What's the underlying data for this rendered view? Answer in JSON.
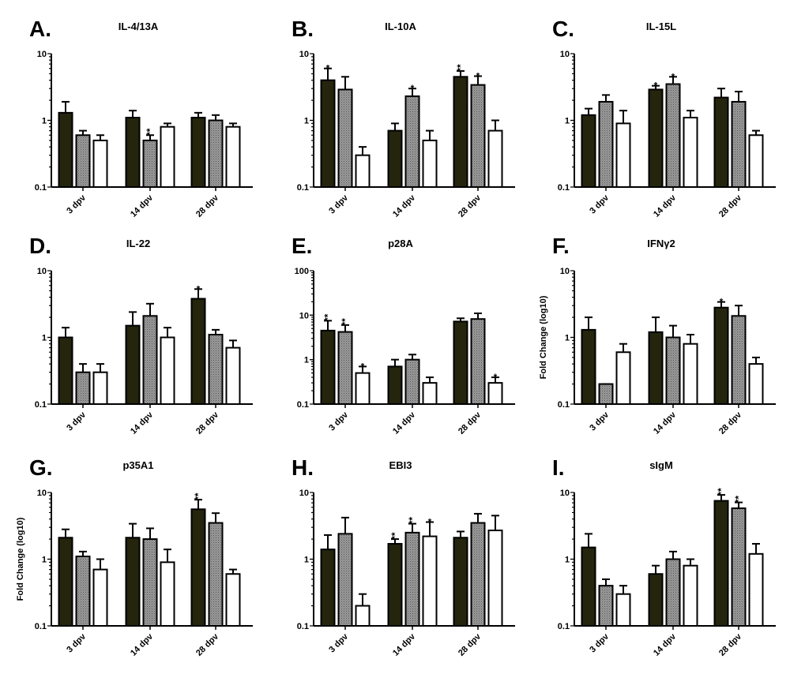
{
  "chart_data": [
    {
      "type": "bar",
      "letter": "A.",
      "title": "IL-4/13A",
      "ylabel": "",
      "yscale": "log",
      "ylim": [
        0.1,
        10
      ],
      "yticks": [
        "0.1",
        "1",
        "10"
      ],
      "categories": [
        "3 dpv",
        "14 dpv",
        "28 dpv"
      ],
      "values": [
        [
          1.3,
          0.6,
          0.5
        ],
        [
          1.1,
          0.5,
          0.8
        ],
        [
          1.1,
          1.0,
          0.8
        ]
      ],
      "errors": [
        [
          1.9,
          0.7,
          0.6
        ],
        [
          1.4,
          0.6,
          0.9
        ],
        [
          1.3,
          1.2,
          0.9
        ]
      ],
      "significance": [
        [
          "",
          "",
          ""
        ],
        [
          "",
          "**",
          ""
        ],
        [
          "",
          "",
          ""
        ]
      ]
    },
    {
      "type": "bar",
      "letter": "B.",
      "title": "IL-10A",
      "ylabel": "",
      "yscale": "log",
      "ylim": [
        0.1,
        10
      ],
      "yticks": [
        "0.1",
        "1",
        "10"
      ],
      "categories": [
        "3 dpv",
        "14 dpv",
        "28 dpv"
      ],
      "values": [
        [
          4.0,
          2.9,
          0.3
        ],
        [
          0.7,
          2.3,
          0.5
        ],
        [
          4.5,
          3.4,
          0.7
        ]
      ],
      "errors": [
        [
          6.0,
          4.5,
          0.4
        ],
        [
          0.9,
          3.0,
          0.7
        ],
        [
          5.5,
          4.6,
          1.0
        ]
      ],
      "significance": [
        [
          "*",
          "",
          ""
        ],
        [
          "",
          "*",
          ""
        ],
        [
          "**",
          "*",
          ""
        ]
      ]
    },
    {
      "type": "bar",
      "letter": "C.",
      "title": "IL-15L",
      "ylabel": "",
      "yscale": "log",
      "ylim": [
        0.1,
        10
      ],
      "yticks": [
        "0.1",
        "1",
        "10"
      ],
      "categories": [
        "3 dpv",
        "14 dpv",
        "28 dpv"
      ],
      "values": [
        [
          1.2,
          1.9,
          0.9
        ],
        [
          2.9,
          3.5,
          1.1
        ],
        [
          2.2,
          1.9,
          0.6
        ]
      ],
      "errors": [
        [
          1.5,
          2.4,
          1.4
        ],
        [
          3.3,
          4.5,
          1.4
        ],
        [
          3.0,
          2.7,
          0.7
        ]
      ],
      "significance": [
        [
          "",
          "",
          ""
        ],
        [
          "*",
          "*",
          ""
        ],
        [
          "",
          "",
          ""
        ]
      ]
    },
    {
      "type": "bar",
      "letter": "D.",
      "title": "IL-22",
      "ylabel": "",
      "yscale": "log",
      "ylim": [
        0.1,
        10
      ],
      "yticks": [
        "0.1",
        "1",
        "10"
      ],
      "categories": [
        "3 dpv",
        "14 dpv",
        "28 dpv"
      ],
      "values": [
        [
          1.0,
          0.3,
          0.3
        ],
        [
          1.5,
          2.1,
          1.0
        ],
        [
          3.8,
          1.1,
          0.7
        ]
      ],
      "errors": [
        [
          1.4,
          0.4,
          0.4
        ],
        [
          2.4,
          3.2,
          1.4
        ],
        [
          5.3,
          1.3,
          0.9
        ]
      ],
      "significance": [
        [
          "",
          "",
          ""
        ],
        [
          "",
          "",
          ""
        ],
        [
          "*",
          "",
          ""
        ]
      ]
    },
    {
      "type": "bar",
      "letter": "E.",
      "title": "p28A",
      "ylabel": "",
      "yscale": "log",
      "ylim": [
        0.1,
        100
      ],
      "yticks": [
        "0.1",
        "1",
        "10",
        "100"
      ],
      "categories": [
        "3 dpv",
        "14 dpv",
        "28 dpv"
      ],
      "values": [
        [
          4.5,
          4.2,
          0.5
        ],
        [
          0.7,
          1.0,
          0.3
        ],
        [
          7.2,
          8.2,
          0.3
        ]
      ],
      "errors": [
        [
          7.5,
          6.0,
          0.7
        ],
        [
          1.0,
          1.3,
          0.4
        ],
        [
          8.5,
          11.0,
          0.4
        ]
      ],
      "significance": [
        [
          "**",
          "**",
          "*"
        ],
        [
          "",
          "",
          ""
        ],
        [
          "",
          "",
          "*"
        ]
      ]
    },
    {
      "type": "bar",
      "letter": "F.",
      "title": "IFNγ2",
      "ylabel": "Fold Change (log10)",
      "yscale": "log",
      "ylim": [
        0.1,
        10
      ],
      "yticks": [
        "0.1",
        "1",
        "10"
      ],
      "categories": [
        "3 dpv",
        "14 dpv",
        "28 dpv"
      ],
      "values": [
        [
          1.3,
          0.2,
          0.6
        ],
        [
          1.2,
          1.0,
          0.8
        ],
        [
          2.8,
          2.1,
          0.4
        ]
      ],
      "errors": [
        [
          2.0,
          0.2,
          0.8
        ],
        [
          2.0,
          1.5,
          1.1
        ],
        [
          3.4,
          3.0,
          0.5
        ]
      ],
      "significance": [
        [
          "",
          "",
          ""
        ],
        [
          "",
          "",
          ""
        ],
        [
          "*",
          "",
          ""
        ]
      ]
    },
    {
      "type": "bar",
      "letter": "G.",
      "title": "p35A1",
      "ylabel": "Fold Change (log10)",
      "yscale": "log",
      "ylim": [
        0.1,
        10
      ],
      "yticks": [
        "0.1",
        "1",
        "10"
      ],
      "categories": [
        "3 dpv",
        "14 dpv",
        "28 dpv"
      ],
      "values": [
        [
          2.1,
          1.1,
          0.7
        ],
        [
          2.1,
          2.0,
          0.9
        ],
        [
          5.6,
          3.5,
          0.6
        ]
      ],
      "errors": [
        [
          2.8,
          1.3,
          1.0
        ],
        [
          3.4,
          2.9,
          1.4
        ],
        [
          7.8,
          4.9,
          0.7
        ]
      ],
      "significance": [
        [
          "",
          "",
          ""
        ],
        [
          "",
          "",
          ""
        ],
        [
          "**",
          "",
          ""
        ]
      ]
    },
    {
      "type": "bar",
      "letter": "H.",
      "title": "EBI3",
      "ylabel": "",
      "yscale": "log",
      "ylim": [
        0.1,
        10
      ],
      "yticks": [
        "0.1",
        "1",
        "10"
      ],
      "categories": [
        "3 dpv",
        "14 dpv",
        "28 dpv"
      ],
      "values": [
        [
          1.4,
          2.4,
          0.2
        ],
        [
          1.7,
          2.5,
          2.2
        ],
        [
          2.1,
          3.5,
          2.7
        ]
      ],
      "errors": [
        [
          2.3,
          4.2,
          0.3
        ],
        [
          2.0,
          3.4,
          3.6
        ],
        [
          2.6,
          4.8,
          4.5
        ]
      ],
      "significance": [
        [
          "",
          "",
          ""
        ],
        [
          "**",
          "**",
          "*"
        ],
        [
          "",
          "",
          ""
        ]
      ]
    },
    {
      "type": "bar",
      "letter": "I.",
      "title": "sIgM",
      "ylabel": "",
      "yscale": "log",
      "ylim": [
        0.1,
        10
      ],
      "yticks": [
        "0.1",
        "1",
        "10"
      ],
      "categories": [
        "3 dpv",
        "14 dpv",
        "28 dpv"
      ],
      "values": [
        [
          1.5,
          0.4,
          0.3
        ],
        [
          0.6,
          1.0,
          0.8
        ],
        [
          7.5,
          5.8,
          1.2
        ]
      ],
      "errors": [
        [
          2.4,
          0.5,
          0.4
        ],
        [
          0.8,
          1.3,
          1.0
        ],
        [
          9.2,
          7.1,
          1.7
        ]
      ],
      "significance": [
        [
          "",
          "",
          ""
        ],
        [
          "",
          "",
          ""
        ],
        [
          "**",
          "**",
          ""
        ]
      ]
    }
  ],
  "colors": {
    "series1": "#25250e",
    "series2": "#8c8c8c",
    "series3": "#ffffff",
    "axis": "#000000"
  }
}
